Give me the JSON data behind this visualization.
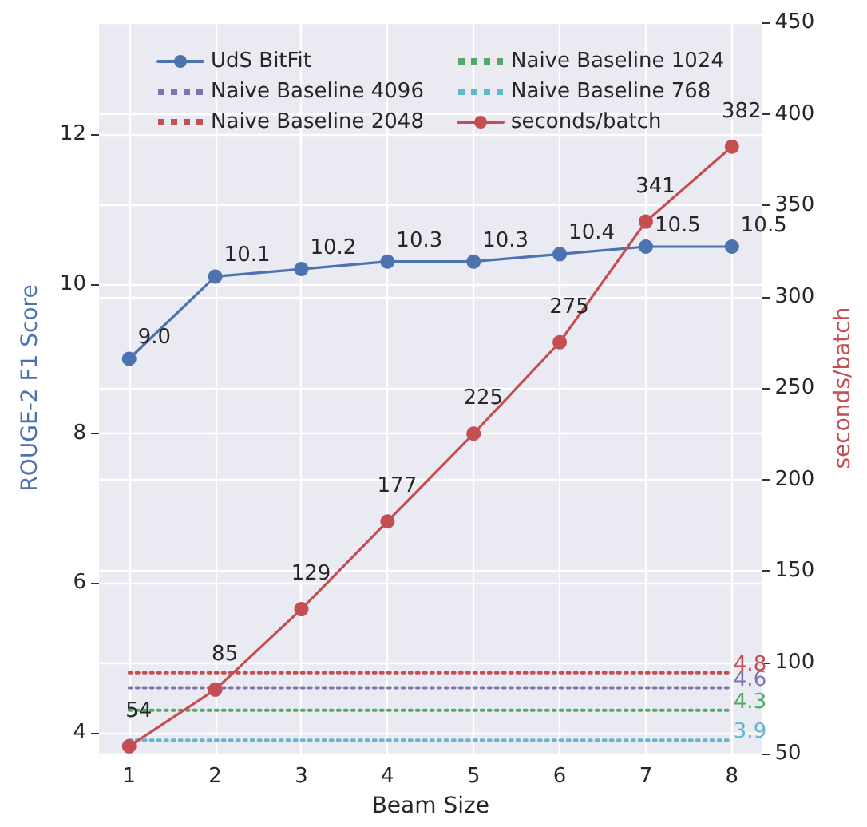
{
  "chart_data": {
    "type": "line",
    "xlabel": "Beam Size",
    "ylabel": "ROUGE-2 F1 Score",
    "y2label": "seconds/batch",
    "x": [
      1,
      2,
      3,
      4,
      5,
      6,
      7,
      8
    ],
    "xlim": [
      0.65,
      8.35
    ],
    "xticks": [
      1,
      2,
      3,
      4,
      5,
      6,
      7,
      8
    ],
    "ylim": [
      3.72,
      13.5
    ],
    "yticks": [
      4,
      6,
      8,
      10,
      12
    ],
    "y2lim": [
      50,
      450
    ],
    "y2ticks": [
      50,
      100,
      150,
      200,
      250,
      300,
      350,
      400,
      450
    ],
    "grid": true,
    "legend": "top",
    "series": [
      {
        "name": "UdS BitFit",
        "color": "#4c72b0",
        "marker": "circle",
        "line_style": "solid",
        "values": [
          9.0,
          10.1,
          10.2,
          10.3,
          10.3,
          10.4,
          10.5,
          10.5
        ],
        "value_labels": [
          "9.0",
          "10.1",
          "10.2",
          "10.3",
          "10.3",
          "10.4",
          "10.5",
          "10.5"
        ]
      },
      {
        "name": "Naive Baseline 4096",
        "color": "#8172b2",
        "marker": "none",
        "line_style": "dotted",
        "values": [
          4.6,
          4.6,
          4.6,
          4.6,
          4.6,
          4.6,
          4.6,
          4.6
        ],
        "value_labels": [
          null,
          null,
          null,
          null,
          null,
          null,
          null,
          "4.6"
        ]
      },
      {
        "name": "Naive Baseline 2048",
        "color": "#c44e52",
        "marker": "none",
        "line_style": "dotted",
        "values": [
          4.8,
          4.8,
          4.8,
          4.8,
          4.8,
          4.8,
          4.8,
          4.8
        ],
        "value_labels": [
          null,
          null,
          null,
          null,
          null,
          null,
          null,
          "4.8"
        ]
      },
      {
        "name": "Naive Baseline 1024",
        "color": "#55a868",
        "marker": "none",
        "line_style": "dotted",
        "values": [
          4.3,
          4.3,
          4.3,
          4.3,
          4.3,
          4.3,
          4.3,
          4.3
        ],
        "value_labels": [
          null,
          null,
          null,
          null,
          null,
          null,
          null,
          "4.3"
        ]
      },
      {
        "name": "Naive Baseline 768",
        "color": "#64b5cd",
        "marker": "none",
        "line_style": "dotted",
        "values": [
          3.9,
          3.9,
          3.9,
          3.9,
          3.9,
          3.9,
          3.9,
          3.9
        ],
        "value_labels": [
          null,
          null,
          null,
          null,
          null,
          null,
          null,
          "3.9"
        ]
      },
      {
        "name": "seconds/batch",
        "color": "#c44e52",
        "marker": "circle",
        "line_style": "solid",
        "axis": "y2",
        "values": [
          54,
          85,
          129,
          177,
          225,
          275,
          341,
          382
        ],
        "value_labels": [
          "54",
          "85",
          "129",
          "177",
          "225",
          "275",
          "341",
          "382"
        ]
      }
    ]
  }
}
